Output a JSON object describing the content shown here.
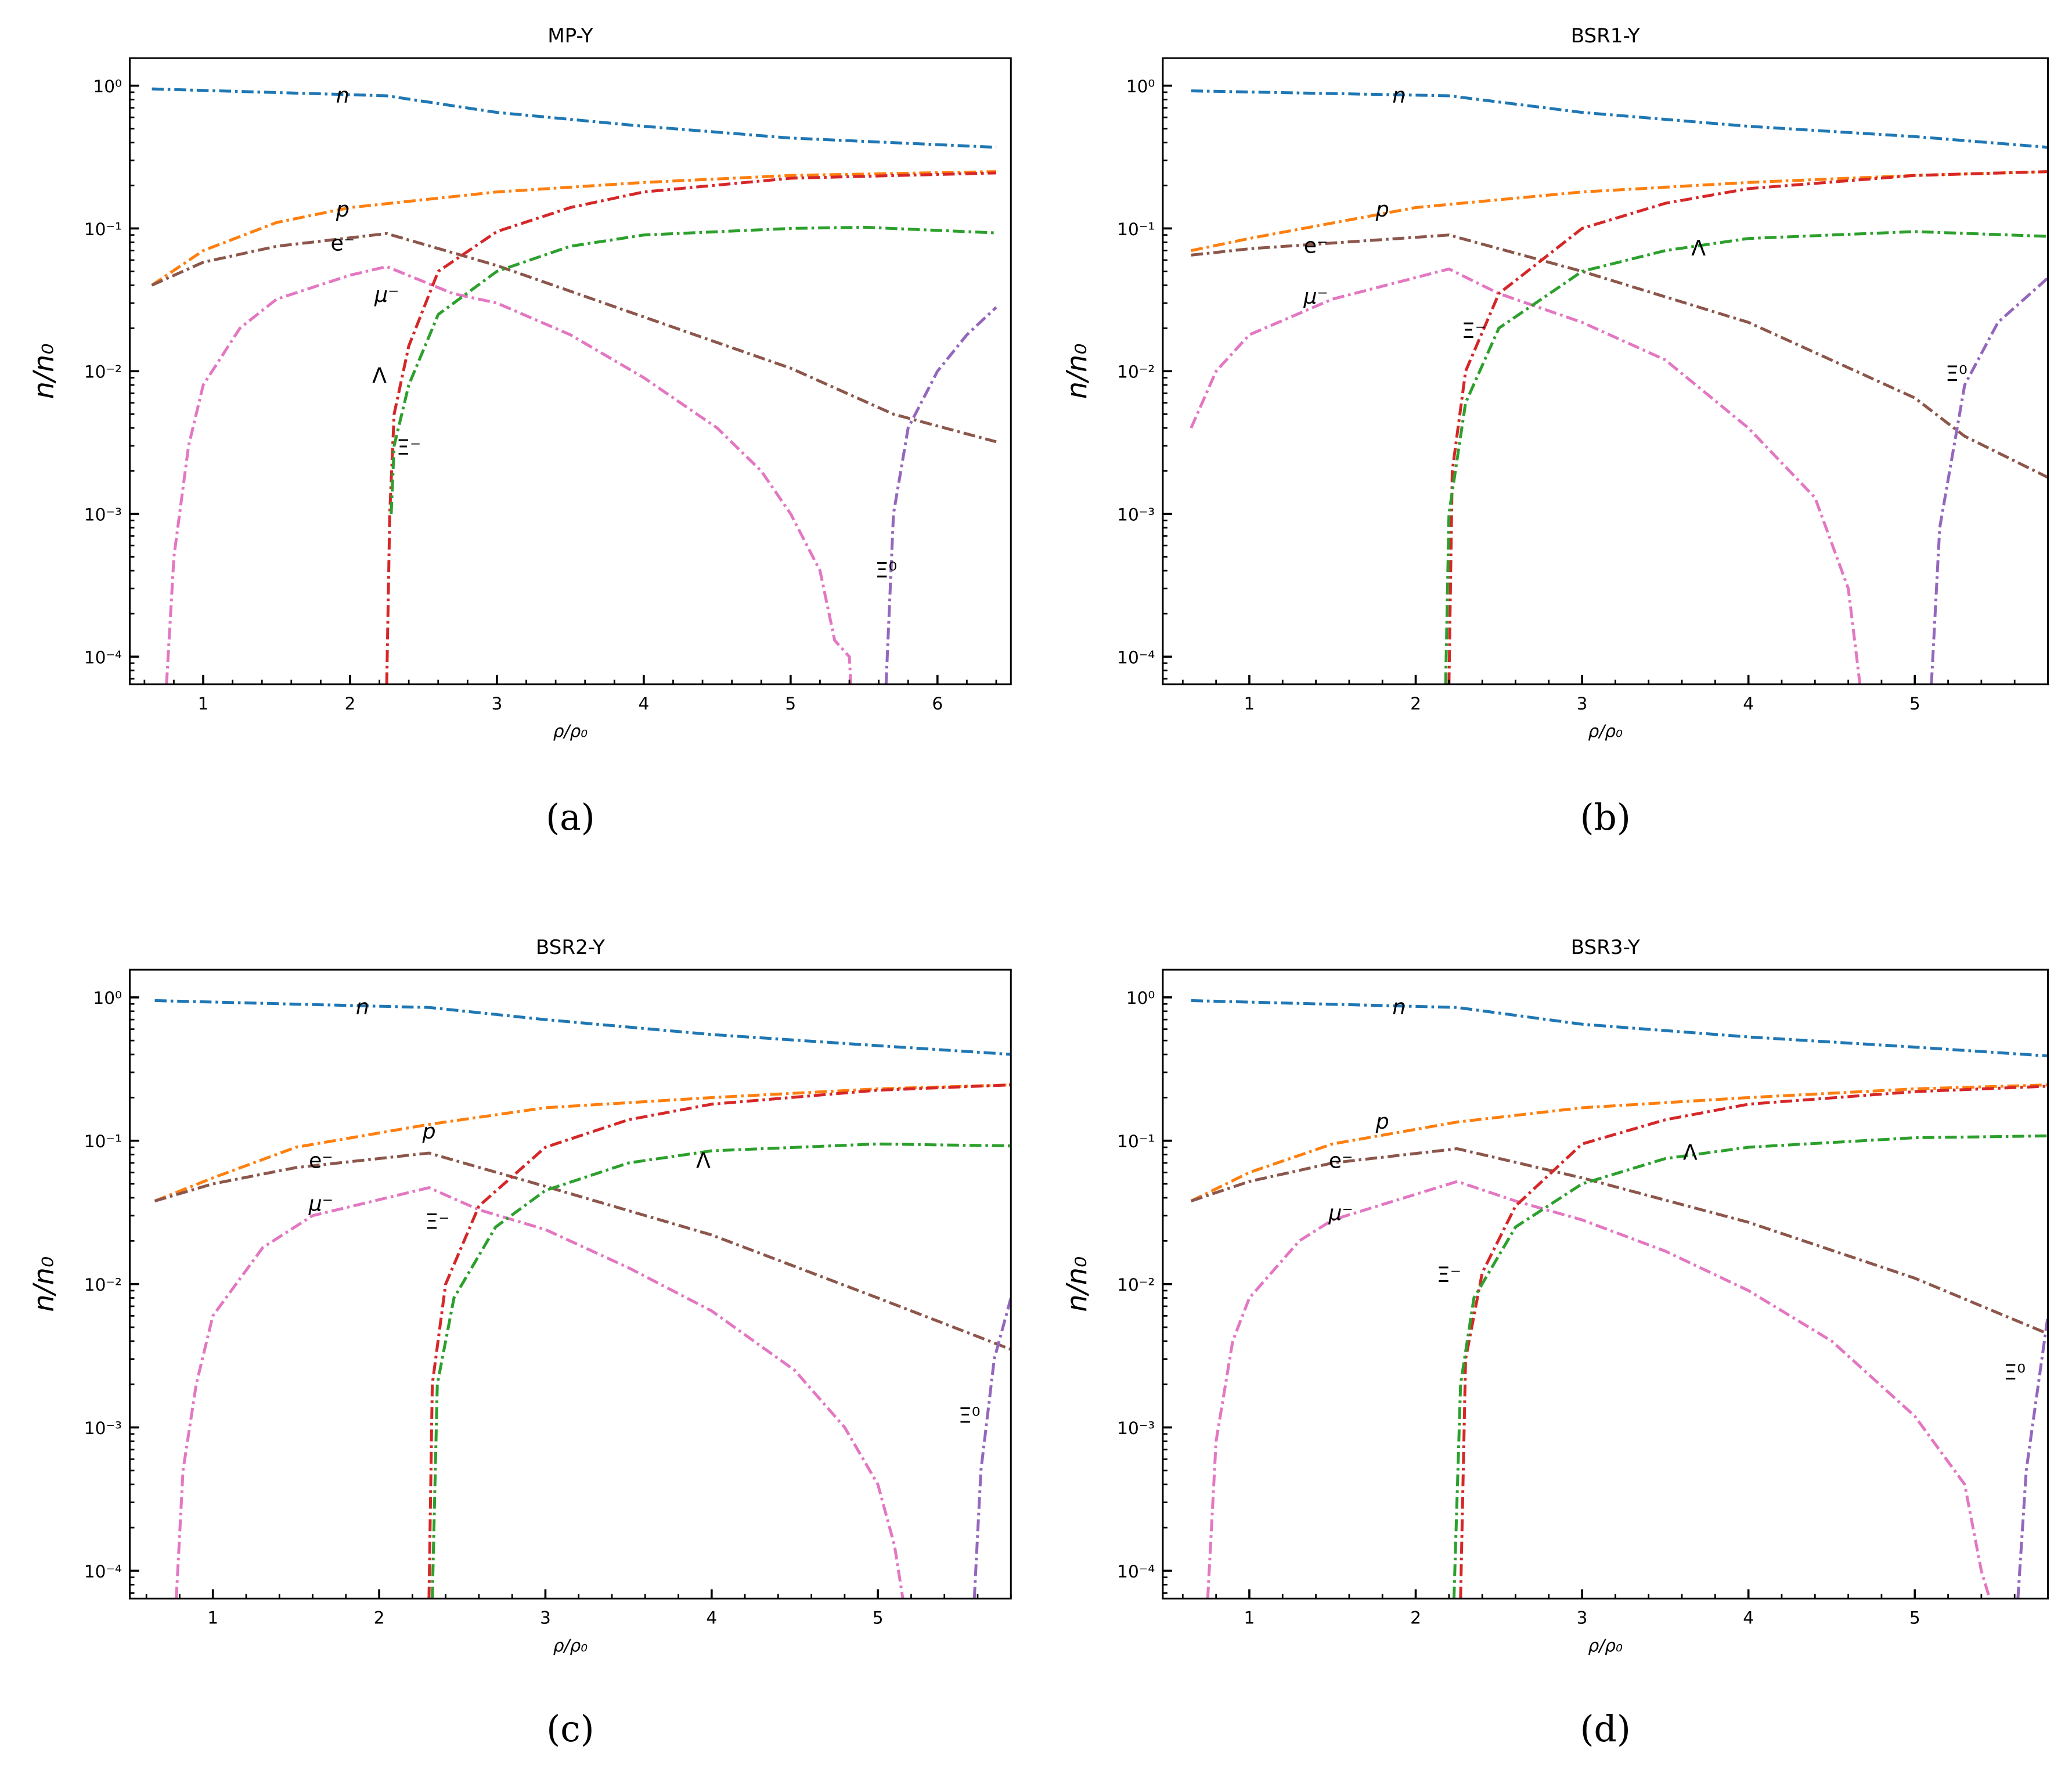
{
  "chart_data": [
    {
      "type": "line",
      "panel": "(a)",
      "title": "MP-Y",
      "xlabel": "ρ/ρ₀",
      "ylabel": "n/n₀",
      "yscale": "log",
      "xlim": [
        0.5,
        6.5
      ],
      "ylim": [
        6.4e-05,
        1.56
      ],
      "xticks": [
        "1",
        "2",
        "3",
        "4",
        "5",
        "6"
      ],
      "yticks": [
        "10⁰",
        "10⁻¹",
        "10⁻²",
        "10⁻³",
        "10⁻⁴"
      ],
      "grid": false,
      "series": [
        {
          "name": "n",
          "color": "#1f77b4",
          "x": [
            0.65,
            2.25,
            3,
            4,
            5,
            6.4
          ],
          "y": [
            0.95,
            0.85,
            0.65,
            0.52,
            0.43,
            0.37
          ]
        },
        {
          "name": "p",
          "color": "#ff7f0e",
          "x": [
            0.65,
            1,
            1.5,
            2,
            3,
            4,
            5,
            6.4
          ],
          "y": [
            0.04,
            0.07,
            0.11,
            0.14,
            0.18,
            0.21,
            0.235,
            0.25
          ]
        },
        {
          "name": "e⁻",
          "color": "#8c564b",
          "x": [
            0.65,
            1,
            1.5,
            2.25,
            3,
            4,
            5,
            5.7,
            6.4
          ],
          "y": [
            0.04,
            0.058,
            0.075,
            0.092,
            0.055,
            0.024,
            0.0105,
            0.005,
            0.0032
          ]
        },
        {
          "name": "μ⁻",
          "color": "#e377c2",
          "x": [
            0.75,
            0.8,
            0.9,
            1,
            1.25,
            1.5,
            2,
            2.25,
            2.7,
            3,
            3.5,
            4,
            4.5,
            4.8,
            5,
            5.2,
            5.3,
            5.4,
            5.41
          ],
          "y": [
            6.4e-05,
            0.0005,
            0.003,
            0.008,
            0.02,
            0.032,
            0.047,
            0.054,
            0.035,
            0.03,
            0.018,
            0.009,
            0.004,
            0.002,
            0.001,
            0.0004,
            0.00013,
            0.0001,
            6.4e-05
          ]
        },
        {
          "name": "Ξ⁻",
          "color": "#d62728",
          "x": [
            2.25,
            2.27,
            2.3,
            2.4,
            2.6,
            3,
            3.5,
            4,
            5,
            6.4
          ],
          "y": [
            6.4e-05,
            0.001,
            0.005,
            0.015,
            0.05,
            0.095,
            0.14,
            0.18,
            0.225,
            0.245
          ]
        },
        {
          "name": "Λ",
          "color": "#2ca02c",
          "x": [
            2.28,
            2.3,
            2.4,
            2.6,
            3,
            3.5,
            4,
            5,
            5.5,
            6.4
          ],
          "y": [
            0.001,
            0.003,
            0.008,
            0.025,
            0.05,
            0.075,
            0.09,
            0.1,
            0.102,
            0.093
          ]
        },
        {
          "name": "Ξ⁰",
          "color": "#9467bd",
          "x": [
            5.65,
            5.7,
            5.8,
            6,
            6.2,
            6.4
          ],
          "y": [
            6.4e-05,
            0.001,
            0.004,
            0.01,
            0.018,
            0.028
          ]
        }
      ],
      "annotations": [
        {
          "text": "n",
          "x": 1.95,
          "y": 0.85
        },
        {
          "text": "p",
          "x": 1.95,
          "y": 0.135
        },
        {
          "text": "e⁻",
          "x": 1.95,
          "y": 0.078
        },
        {
          "text": "μ⁻",
          "x": 2.25,
          "y": 0.034
        },
        {
          "text": "Λ",
          "x": 2.2,
          "y": 0.0092
        },
        {
          "text": "Ξ⁻",
          "x": 2.4,
          "y": 0.0029
        },
        {
          "text": "Ξ⁰",
          "x": 5.65,
          "y": 0.0004
        }
      ]
    },
    {
      "type": "line",
      "panel": "(b)",
      "title": "BSR1-Y",
      "xlabel": "ρ/ρ₀",
      "ylabel": "n/n₀",
      "yscale": "log",
      "xlim": [
        0.48,
        5.8
      ],
      "ylim": [
        6.4e-05,
        1.56
      ],
      "xticks": [
        "1",
        "2",
        "3",
        "4",
        "5"
      ],
      "yticks": [
        "10⁰",
        "10⁻¹",
        "10⁻²",
        "10⁻³",
        "10⁻⁴"
      ],
      "grid": false,
      "series": [
        {
          "name": "n",
          "color": "#1f77b4",
          "x": [
            0.65,
            2.2,
            3,
            4,
            5,
            5.8
          ],
          "y": [
            0.92,
            0.85,
            0.65,
            0.52,
            0.44,
            0.37
          ]
        },
        {
          "name": "p",
          "color": "#ff7f0e",
          "x": [
            0.65,
            1,
            2,
            3,
            4,
            5,
            5.8
          ],
          "y": [
            0.07,
            0.085,
            0.14,
            0.18,
            0.21,
            0.235,
            0.25
          ]
        },
        {
          "name": "e⁻",
          "color": "#8c564b",
          "x": [
            0.65,
            1,
            2.2,
            3,
            4,
            5,
            5.3,
            5.8
          ],
          "y": [
            0.065,
            0.072,
            0.09,
            0.05,
            0.022,
            0.0065,
            0.0035,
            0.0018
          ]
        },
        {
          "name": "μ⁻",
          "color": "#e377c2",
          "x": [
            0.65,
            0.8,
            1,
            1.5,
            2.2,
            2.5,
            3,
            3.5,
            4,
            4.4,
            4.6,
            4.65,
            4.67
          ],
          "y": [
            0.004,
            0.01,
            0.018,
            0.032,
            0.052,
            0.035,
            0.022,
            0.012,
            0.004,
            0.0013,
            0.0003,
            0.0001,
            6.4e-05
          ]
        },
        {
          "name": "Ξ⁻",
          "color": "#d62728",
          "x": [
            2.2,
            2.22,
            2.3,
            2.5,
            3,
            3.5,
            4,
            5,
            5.8
          ],
          "y": [
            6.4e-05,
            0.002,
            0.01,
            0.035,
            0.1,
            0.15,
            0.19,
            0.235,
            0.25
          ]
        },
        {
          "name": "Λ",
          "color": "#2ca02c",
          "x": [
            2.18,
            2.2,
            2.3,
            2.5,
            3,
            3.5,
            4,
            5,
            5.8
          ],
          "y": [
            6.4e-05,
            0.001,
            0.006,
            0.02,
            0.05,
            0.07,
            0.085,
            0.095,
            0.088
          ]
        },
        {
          "name": "Ξ⁰",
          "color": "#9467bd",
          "x": [
            5.1,
            5.15,
            5.3,
            5.5,
            5.8
          ],
          "y": [
            6.4e-05,
            0.0008,
            0.008,
            0.022,
            0.045
          ]
        }
      ],
      "annotations": [
        {
          "text": "n",
          "x": 1.9,
          "y": 0.85
        },
        {
          "text": "p",
          "x": 1.8,
          "y": 0.135
        },
        {
          "text": "e⁻",
          "x": 1.4,
          "y": 0.075
        },
        {
          "text": "Λ",
          "x": 3.7,
          "y": 0.072
        },
        {
          "text": "μ⁻",
          "x": 1.4,
          "y": 0.033
        },
        {
          "text": "Ξ⁻",
          "x": 2.35,
          "y": 0.019
        },
        {
          "text": "Ξ⁰",
          "x": 5.25,
          "y": 0.0095
        }
      ]
    },
    {
      "type": "line",
      "panel": "(c)",
      "title": "BSR2-Y",
      "xlabel": "ρ/ρ₀",
      "ylabel": "n/n₀",
      "yscale": "log",
      "xlim": [
        0.5,
        5.8
      ],
      "ylim": [
        6.4e-05,
        1.56
      ],
      "xticks": [
        "1",
        "2",
        "3",
        "4",
        "5"
      ],
      "yticks": [
        "10⁰",
        "10⁻¹",
        "10⁻²",
        "10⁻³",
        "10⁻⁴"
      ],
      "grid": false,
      "series": [
        {
          "name": "n",
          "color": "#1f77b4",
          "x": [
            0.65,
            2.3,
            3,
            4,
            5,
            5.8
          ],
          "y": [
            0.95,
            0.85,
            0.7,
            0.55,
            0.46,
            0.4
          ]
        },
        {
          "name": "p",
          "color": "#ff7f0e",
          "x": [
            0.65,
            1,
            1.5,
            2.3,
            3,
            4,
            5,
            5.8
          ],
          "y": [
            0.038,
            0.055,
            0.09,
            0.13,
            0.17,
            0.2,
            0.23,
            0.245
          ]
        },
        {
          "name": "e⁻",
          "color": "#8c564b",
          "x": [
            0.65,
            1,
            1.5,
            2.3,
            3,
            4,
            5,
            5.8
          ],
          "y": [
            0.038,
            0.05,
            0.065,
            0.082,
            0.048,
            0.022,
            0.008,
            0.0035
          ]
        },
        {
          "name": "μ⁻",
          "color": "#e377c2",
          "x": [
            0.78,
            0.82,
            0.9,
            1,
            1.3,
            1.6,
            2.3,
            2.6,
            3,
            3.5,
            4,
            4.5,
            4.8,
            5,
            5.1,
            5.15
          ],
          "y": [
            6.4e-05,
            0.0005,
            0.002,
            0.006,
            0.018,
            0.03,
            0.047,
            0.033,
            0.024,
            0.013,
            0.0065,
            0.0025,
            0.001,
            0.0004,
            0.00015,
            6.4e-05
          ]
        },
        {
          "name": "Ξ⁻",
          "color": "#d62728",
          "x": [
            2.3,
            2.32,
            2.4,
            2.6,
            3,
            3.5,
            4,
            5,
            5.8
          ],
          "y": [
            6.4e-05,
            0.002,
            0.01,
            0.035,
            0.09,
            0.14,
            0.18,
            0.225,
            0.245
          ]
        },
        {
          "name": "Λ",
          "color": "#2ca02c",
          "x": [
            2.32,
            2.35,
            2.45,
            2.7,
            3,
            3.5,
            4,
            5,
            5.8
          ],
          "y": [
            6.4e-05,
            0.002,
            0.008,
            0.025,
            0.045,
            0.07,
            0.085,
            0.095,
            0.092
          ]
        },
        {
          "name": "Ξ⁰",
          "color": "#9467bd",
          "x": [
            5.58,
            5.62,
            5.7,
            5.8
          ],
          "y": [
            6.4e-05,
            0.0005,
            0.003,
            0.008
          ]
        }
      ],
      "annotations": [
        {
          "text": "n",
          "x": 1.9,
          "y": 0.85
        },
        {
          "text": "p",
          "x": 2.3,
          "y": 0.115
        },
        {
          "text": "e⁻",
          "x": 1.65,
          "y": 0.072
        },
        {
          "text": "Λ",
          "x": 3.95,
          "y": 0.072
        },
        {
          "text": "μ⁻",
          "x": 1.65,
          "y": 0.036
        },
        {
          "text": "Ξ⁻",
          "x": 2.35,
          "y": 0.027
        },
        {
          "text": "Ξ⁰",
          "x": 5.55,
          "y": 0.0012
        }
      ]
    },
    {
      "type": "line",
      "panel": "(d)",
      "title": "BSR3-Y",
      "xlabel": "ρ/ρ₀",
      "ylabel": "n/n₀",
      "yscale": "log",
      "xlim": [
        0.48,
        5.8
      ],
      "ylim": [
        6.4e-05,
        1.56
      ],
      "xticks": [
        "1",
        "2",
        "3",
        "4",
        "5"
      ],
      "yticks": [
        "10⁰",
        "10⁻¹",
        "10⁻²",
        "10⁻³",
        "10⁻⁴"
      ],
      "grid": false,
      "series": [
        {
          "name": "n",
          "color": "#1f77b4",
          "x": [
            0.65,
            2.25,
            3,
            4,
            5,
            5.8
          ],
          "y": [
            0.95,
            0.85,
            0.65,
            0.53,
            0.45,
            0.39
          ]
        },
        {
          "name": "p",
          "color": "#ff7f0e",
          "x": [
            0.65,
            1,
            1.5,
            2.25,
            3,
            4,
            5,
            5.8
          ],
          "y": [
            0.038,
            0.06,
            0.095,
            0.135,
            0.17,
            0.2,
            0.23,
            0.245
          ]
        },
        {
          "name": "e⁻",
          "color": "#8c564b",
          "x": [
            0.65,
            1,
            1.5,
            2.25,
            3,
            4,
            5,
            5.8
          ],
          "y": [
            0.038,
            0.052,
            0.07,
            0.088,
            0.055,
            0.027,
            0.011,
            0.0045
          ]
        },
        {
          "name": "μ⁻",
          "color": "#e377c2",
          "x": [
            0.75,
            0.8,
            0.9,
            1,
            1.3,
            1.5,
            2.25,
            2.6,
            3,
            3.5,
            4,
            4.5,
            5,
            5.3,
            5.4,
            5.45
          ],
          "y": [
            6.4e-05,
            0.0008,
            0.004,
            0.008,
            0.02,
            0.028,
            0.052,
            0.038,
            0.028,
            0.017,
            0.009,
            0.004,
            0.0012,
            0.0004,
            0.0001,
            6.4e-05
          ]
        },
        {
          "name": "Ξ⁻",
          "color": "#d62728",
          "x": [
            2.27,
            2.3,
            2.4,
            2.6,
            3,
            3.5,
            4,
            5,
            5.8
          ],
          "y": [
            6.4e-05,
            0.003,
            0.012,
            0.035,
            0.095,
            0.14,
            0.18,
            0.22,
            0.24
          ]
        },
        {
          "name": "Λ",
          "color": "#2ca02c",
          "x": [
            2.23,
            2.27,
            2.35,
            2.6,
            3,
            3.5,
            4,
            5,
            5.8
          ],
          "y": [
            6.4e-05,
            0.002,
            0.008,
            0.025,
            0.05,
            0.075,
            0.09,
            0.105,
            0.108
          ]
        },
        {
          "name": "Ξ⁰",
          "color": "#9467bd",
          "x": [
            5.62,
            5.67,
            5.8
          ],
          "y": [
            6.4e-05,
            0.0005,
            0.006
          ]
        }
      ],
      "annotations": [
        {
          "text": "n",
          "x": 1.9,
          "y": 0.85
        },
        {
          "text": "p",
          "x": 1.8,
          "y": 0.135
        },
        {
          "text": "e⁻",
          "x": 1.55,
          "y": 0.072
        },
        {
          "text": "Λ",
          "x": 3.65,
          "y": 0.082
        },
        {
          "text": "μ⁻",
          "x": 1.55,
          "y": 0.031
        },
        {
          "text": "Ξ⁻",
          "x": 2.2,
          "y": 0.0115
        },
        {
          "text": "Ξ⁰",
          "x": 5.6,
          "y": 0.0024
        }
      ]
    }
  ]
}
